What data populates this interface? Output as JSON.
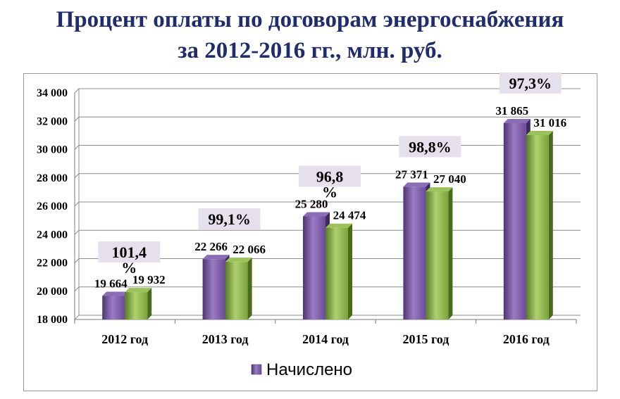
{
  "title_line1": "Процент оплаты по договорам энергоснабжения",
  "title_line2": "за 2012-2016 гг., млн. руб.",
  "colors": {
    "title": "#1f2d6e",
    "series_charged": "#6a4a96",
    "series_paid": "#7aa23a",
    "pct_box": "#e6dfec"
  },
  "chart_data": {
    "type": "bar",
    "categories": [
      "2012 год",
      "2013 год",
      "2014 год",
      "2015 год",
      "2016 год"
    ],
    "series": [
      {
        "name": "Начислено",
        "values": [
          19664,
          22266,
          25280,
          27371,
          31865
        ],
        "labels": [
          "19 664",
          "22 266",
          "25 280",
          "27 371",
          "31 865"
        ]
      },
      {
        "name": "",
        "values": [
          19932,
          22066,
          24474,
          27040,
          31016
        ],
        "labels": [
          "19 932",
          "22 066",
          "24 474",
          "27 040",
          "31 016"
        ]
      }
    ],
    "percent_labels": [
      [
        "101,4",
        "%"
      ],
      [
        "99,1%"
      ],
      [
        "96,8",
        "%"
      ],
      [
        "98,8%"
      ],
      [
        "97,3%"
      ]
    ],
    "ylim": [
      18000,
      34000
    ],
    "yticks": [
      18000,
      20000,
      22000,
      24000,
      26000,
      28000,
      30000,
      32000,
      34000
    ],
    "ytick_labels": [
      "18 000",
      "20 000",
      "22 000",
      "24 000",
      "26 000",
      "28 000",
      "30 000",
      "32 000",
      "34 000"
    ],
    "grid": true,
    "legend": {
      "position": "bottom",
      "entries": [
        "Начислено"
      ]
    }
  }
}
